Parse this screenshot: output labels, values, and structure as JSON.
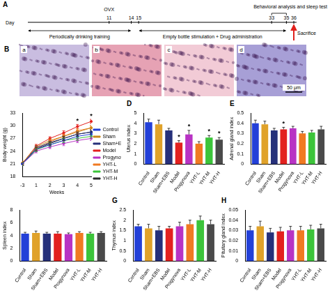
{
  "timeline": {
    "panel": "A",
    "axis_label": "Day",
    "days": [
      11,
      14,
      15,
      33,
      35,
      36
    ],
    "events": [
      {
        "day": 11,
        "text": "OVX"
      },
      {
        "day": 36,
        "text": "Sacrifice",
        "color": "#e0201b"
      }
    ],
    "periods": [
      {
        "from": null,
        "to": 14,
        "text": "Periodically drinking training"
      },
      {
        "from": 15,
        "to": 35,
        "text": "Empty bottle stimulation + Drug administration"
      }
    ],
    "bracket": {
      "from": 33,
      "to": 35,
      "text": "Behavioral analysis and sleep test"
    }
  },
  "micrographs": {
    "panel": "B",
    "scale_bar": "50 μm",
    "images": [
      {
        "label": "a",
        "color": "#c9bde0"
      },
      {
        "label": "b",
        "color": "#e6a2b4"
      },
      {
        "label": "c",
        "color": "#f2cbd6"
      },
      {
        "label": "d",
        "color": "#a79fd6"
      }
    ]
  },
  "chart_data": [
    {
      "type": "line",
      "categories": [
        "-3",
        "1",
        "2",
        "3",
        "4",
        "5"
      ],
      "xlabel": "Weeks",
      "ylabel": "Body weight (g)",
      "ylim": [
        18,
        33
      ],
      "yticks": [
        18,
        21,
        24,
        27,
        30,
        33
      ],
      "grid": false,
      "legend": "right",
      "series": [
        {
          "name": "Control",
          "color": "#2340d8",
          "marker": "circle",
          "values": [
            21.0,
            24.5,
            25.5,
            26.5,
            27.5,
            28.0
          ],
          "errors": [
            0.4,
            0.4,
            0.4,
            0.5,
            0.5,
            0.5
          ]
        },
        {
          "name": "Sham",
          "color": "#c98a1c",
          "marker": "circle",
          "values": [
            21.2,
            25.0,
            26.5,
            27.5,
            28.5,
            29.5
          ],
          "errors": [
            0.4,
            0.4,
            0.4,
            0.5,
            0.5,
            0.5
          ]
        },
        {
          "name": "Sham+EBS",
          "color": "#26307a",
          "marker": "circle",
          "values": [
            21.0,
            24.8,
            26.0,
            27.0,
            28.0,
            28.5
          ],
          "errors": [
            0.4,
            0.4,
            0.4,
            0.5,
            0.5,
            0.5
          ]
        },
        {
          "name": "Model",
          "color": "#e3211f",
          "marker": "circle",
          "values": [
            21.1,
            25.2,
            27.0,
            28.3,
            29.8,
            31.0
          ],
          "errors": [
            0.4,
            0.4,
            0.4,
            0.5,
            0.5,
            0.5
          ]
        },
        {
          "name": "Progynova",
          "color": "#b833c4",
          "marker": "circle",
          "values": [
            21.0,
            24.0,
            25.0,
            25.8,
            26.5,
            27.0
          ],
          "errors": [
            0.4,
            0.4,
            0.4,
            0.5,
            0.5,
            0.5
          ]
        },
        {
          "name": "YHT-L",
          "color": "#f07a22",
          "marker": "circle",
          "values": [
            21.2,
            24.6,
            26.2,
            27.5,
            28.8,
            29.5
          ],
          "errors": [
            0.4,
            0.4,
            0.4,
            0.5,
            0.5,
            0.5
          ]
        },
        {
          "name": "YHT-M",
          "color": "#3cc43a",
          "marker": "circle",
          "values": [
            21.0,
            24.3,
            25.5,
            26.5,
            27.0,
            27.5
          ],
          "errors": [
            0.4,
            0.4,
            0.4,
            0.5,
            0.5,
            0.5
          ]
        },
        {
          "name": "YHT-H",
          "color": "#2a2a2a",
          "marker": "circle",
          "values": [
            21.1,
            24.5,
            25.8,
            27.0,
            28.0,
            28.5
          ],
          "errors": [
            0.4,
            0.4,
            0.4,
            0.5,
            0.5,
            0.5
          ]
        }
      ],
      "annotations": [
        {
          "category": "4",
          "y": 31.0,
          "text": "*"
        },
        {
          "category": "5",
          "y": 32.2,
          "text": "*"
        }
      ]
    },
    {
      "type": "bar",
      "panel": "D",
      "ylabel": "Uterus index",
      "categories": [
        "Control",
        "Sham",
        "Sham+EBS",
        "Model",
        "Progynova",
        "YHT-L",
        "YHT-M",
        "YHT-H"
      ],
      "colors": [
        "#2340d8",
        "#e0a22a",
        "#26307a",
        "#e3211f",
        "#b833c4",
        "#f07a22",
        "#3cc43a",
        "#4a4a4a"
      ],
      "values": [
        4.1,
        3.9,
        3.3,
        2.1,
        2.9,
        2.0,
        2.6,
        2.4
      ],
      "errors": [
        0.3,
        0.4,
        0.2,
        0.2,
        0.4,
        0.2,
        0.2,
        0.2
      ],
      "significance": [
        null,
        null,
        null,
        "*",
        "*",
        null,
        "*",
        "*"
      ],
      "ylim": [
        0,
        5
      ],
      "yticks": [
        0,
        1,
        2,
        3,
        4,
        5
      ],
      "grid": false
    },
    {
      "type": "bar",
      "panel": "E",
      "ylabel": "Adrenal gland index",
      "categories": [
        "Control",
        "Sham",
        "Sham+EBS",
        "Model",
        "Progynova",
        "YHT-L",
        "YHT-M",
        "YHT-H"
      ],
      "colors": [
        "#2340d8",
        "#e0a22a",
        "#26307a",
        "#e3211f",
        "#b833c4",
        "#f07a22",
        "#3cc43a",
        "#4a4a4a"
      ],
      "values": [
        0.4,
        0.39,
        0.33,
        0.34,
        0.35,
        0.3,
        0.31,
        0.34
      ],
      "errors": [
        0.03,
        0.03,
        0.02,
        0.02,
        0.02,
        0.02,
        0.02,
        0.03
      ],
      "significance": [
        null,
        null,
        null,
        "*",
        null,
        null,
        null,
        null
      ],
      "ylim": [
        0,
        0.5
      ],
      "yticks": [
        0,
        0.1,
        0.2,
        0.3,
        0.4,
        0.5
      ],
      "grid": false
    },
    {
      "type": "bar",
      "ylabel": "Spleen index",
      "categories": [
        "Control",
        "Sham",
        "Sham+EBS",
        "Model",
        "Progynova",
        "YHT-L",
        "YHT-M",
        "YHT-H"
      ],
      "colors": [
        "#2340d8",
        "#e0a22a",
        "#26307a",
        "#e3211f",
        "#b833c4",
        "#f07a22",
        "#3cc43a",
        "#4a4a4a"
      ],
      "values": [
        4.3,
        4.4,
        4.3,
        4.3,
        4.2,
        4.4,
        4.3,
        4.4
      ],
      "errors": [
        0.2,
        0.3,
        0.2,
        0.3,
        0.2,
        0.2,
        0.2,
        0.2
      ],
      "ylim": [
        0,
        8
      ],
      "yticks": [
        0,
        2,
        4,
        6,
        8
      ],
      "grid": false
    },
    {
      "type": "bar",
      "panel": "G",
      "ylabel": "Thymus index",
      "categories": [
        "Control",
        "Sham",
        "Sham+EBS",
        "Model",
        "Progynova",
        "YHT-L",
        "YHT-M",
        "YHT-H"
      ],
      "colors": [
        "#2340d8",
        "#e0a22a",
        "#26307a",
        "#e3211f",
        "#b833c4",
        "#f07a22",
        "#3cc43a",
        "#4a4a4a"
      ],
      "values": [
        1.7,
        1.6,
        1.5,
        1.6,
        1.7,
        1.8,
        2.0,
        1.8
      ],
      "errors": [
        0.1,
        0.2,
        0.2,
        0.1,
        0.2,
        0.2,
        0.2,
        0.2
      ],
      "ylim": [
        0,
        2.5
      ],
      "yticks": [
        0,
        0.5,
        1,
        1.5,
        2,
        2.5
      ],
      "grid": false
    },
    {
      "type": "bar",
      "panel": "H",
      "ylabel": "Pituitary gland index",
      "categories": [
        "Control",
        "Sham",
        "Sham+EBS",
        "Model",
        "Progynova",
        "YHT-L",
        "YHT-M",
        "YHT-H"
      ],
      "colors": [
        "#2340d8",
        "#e0a22a",
        "#26307a",
        "#e3211f",
        "#b833c4",
        "#f07a22",
        "#3cc43a",
        "#4a4a4a"
      ],
      "values": [
        0.03,
        0.034,
        0.028,
        0.029,
        0.03,
        0.03,
        0.031,
        0.032
      ],
      "errors": [
        0.004,
        0.005,
        0.004,
        0.004,
        0.004,
        0.004,
        0.004,
        0.004
      ],
      "ylim": [
        0,
        0.05
      ],
      "yticks": [
        0,
        0.01,
        0.02,
        0.03,
        0.04,
        0.05
      ],
      "grid": false
    }
  ]
}
